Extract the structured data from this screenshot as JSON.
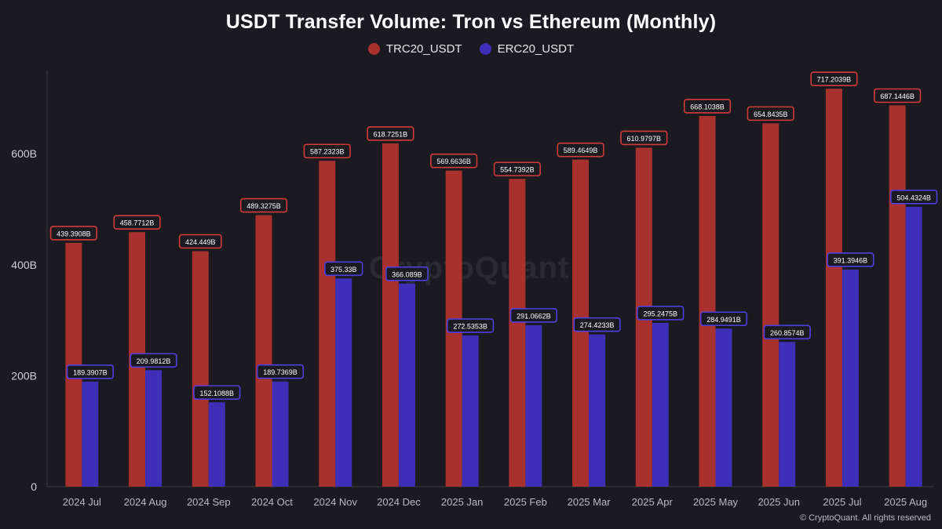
{
  "chart_data": {
    "type": "bar",
    "title": "USDT Transfer Volume: Tron vs Ethereum (Monthly)",
    "categories": [
      "2024 Jul",
      "2024 Aug",
      "2024 Sep",
      "2024 Oct",
      "2024 Nov",
      "2024 Dec",
      "2025 Jan",
      "2025 Feb",
      "2025 Mar",
      "2025 Apr",
      "2025 May",
      "2025 Jun",
      "2025 Jul",
      "2025 Aug"
    ],
    "series": [
      {
        "name": "TRC20_USDT",
        "color": "#a8302d",
        "label_border": "#d23b37",
        "values": [
          439.3908,
          458.7712,
          424.449,
          489.3275,
          587.2323,
          618.7251,
          569.6636,
          554.7392,
          589.4649,
          610.9797,
          668.1038,
          654.8435,
          717.2039,
          687.1446
        ],
        "labels": [
          "439.3908B",
          "458.7712B",
          "424.449B",
          "489.3275B",
          "587.2323B",
          "618.7251B",
          "569.6636B",
          "554.7392B",
          "589.4649B",
          "610.9797B",
          "668.1038B",
          "654.8435B",
          "717.2039B",
          "687.1446B"
        ]
      },
      {
        "name": "ERC20_USDT",
        "color": "#3f2fb8",
        "label_border": "#4f3fe0",
        "values": [
          189.3907,
          209.9812,
          152.1088,
          189.7369,
          375.33,
          366.089,
          272.5353,
          291.0662,
          274.4233,
          295.2475,
          284.9491,
          260.8574,
          391.3946,
          504.4324
        ],
        "labels": [
          "189.3907B",
          "209.9812B",
          "152.1088B",
          "189.7369B",
          "375.33B",
          "366.089B",
          "272.5353B",
          "291.0662B",
          "274.4233B",
          "295.2475B",
          "284.9491B",
          "260.8574B",
          "391.3946B",
          "504.4324B"
        ]
      }
    ],
    "yticks": [
      {
        "value": 0,
        "label": "0"
      },
      {
        "value": 200,
        "label": "200B"
      },
      {
        "value": 400,
        "label": "400B"
      },
      {
        "value": 600,
        "label": "600B"
      }
    ],
    "ylim": [
      0,
      750
    ],
    "xlabel": "",
    "ylabel": "",
    "grid": false,
    "legend": "top-center"
  },
  "watermark": "CryptoQuant",
  "footer": "© CryptoQuant. All rights reserved"
}
